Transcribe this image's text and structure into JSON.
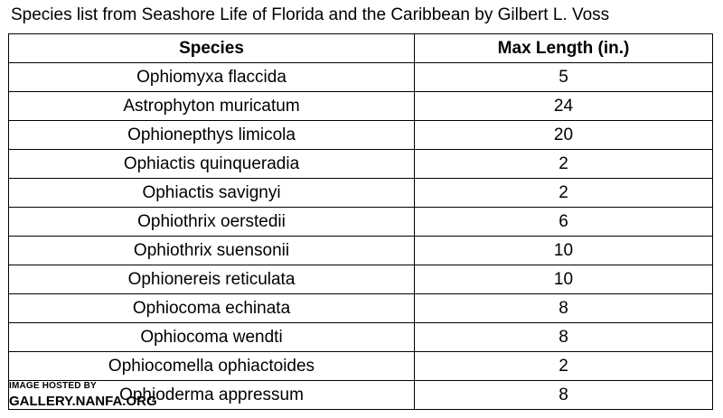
{
  "caption": "Species list from Seashore Life of Florida and the Caribbean by Gilbert L. Voss",
  "table": {
    "headers": [
      "Species",
      "Max Length (in.)"
    ],
    "rows": [
      {
        "species": "Ophiomyxa flaccida",
        "max_length": "5"
      },
      {
        "species": "Astrophyton muricatum",
        "max_length": "24"
      },
      {
        "species": "Ophionepthys limicola",
        "max_length": "20"
      },
      {
        "species": "Ophiactis quinqueradia",
        "max_length": "2"
      },
      {
        "species": "Ophiactis savignyi",
        "max_length": "2"
      },
      {
        "species": "Ophiothrix oerstedii",
        "max_length": "6"
      },
      {
        "species": "Ophiothrix suensonii",
        "max_length": "10"
      },
      {
        "species": "Ophionereis reticulata",
        "max_length": "10"
      },
      {
        "species": "Ophiocoma echinata",
        "max_length": "8"
      },
      {
        "species": "Ophiocoma wendti",
        "max_length": "8"
      },
      {
        "species": "Ophiocomella ophiactoides",
        "max_length": "2"
      },
      {
        "species": "Ophioderma appressum",
        "max_length": "8"
      }
    ]
  },
  "watermark": {
    "line1": "IMAGE HOSTED BY",
    "line2": "GALLERY.NANFA.ORG"
  }
}
